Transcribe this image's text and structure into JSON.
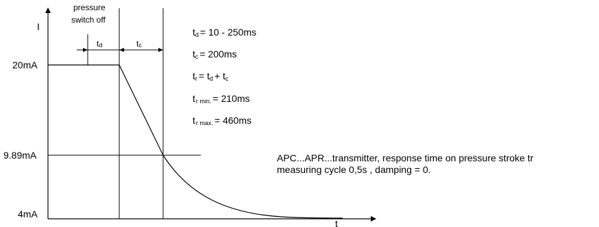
{
  "axes": {
    "y_label": "I",
    "x_label": "t"
  },
  "levels": {
    "high": "20mA",
    "mid": "9.89mA",
    "low": "4mA"
  },
  "event": {
    "line1": "pressure",
    "line2": "switch off"
  },
  "intervals": {
    "td": {
      "base": "t",
      "sub": "d"
    },
    "tc": {
      "base": "t",
      "sub": "c"
    }
  },
  "equations": [
    {
      "base": "t",
      "sub": "d",
      "rhs": "= 10 - 250ms"
    },
    {
      "base": "t",
      "sub": "c",
      "rhs": "=  200ms"
    },
    {
      "base": "t",
      "sub": "r",
      "rhs": "=  t",
      "rhs_sub": "d",
      "rhs_tail": "+  t",
      "rhs_tail_sub": "c"
    },
    {
      "base": "t",
      "sub": "r min.",
      "rhs": "=  210ms"
    },
    {
      "base": "t",
      "sub": "r max.",
      "rhs": "=  460ms"
    }
  ],
  "caption": {
    "line1": "APC...APR...transmitter, response time on pressure stroke tr",
    "line2": "measuring cycle 0,5s , damping = 0."
  }
}
